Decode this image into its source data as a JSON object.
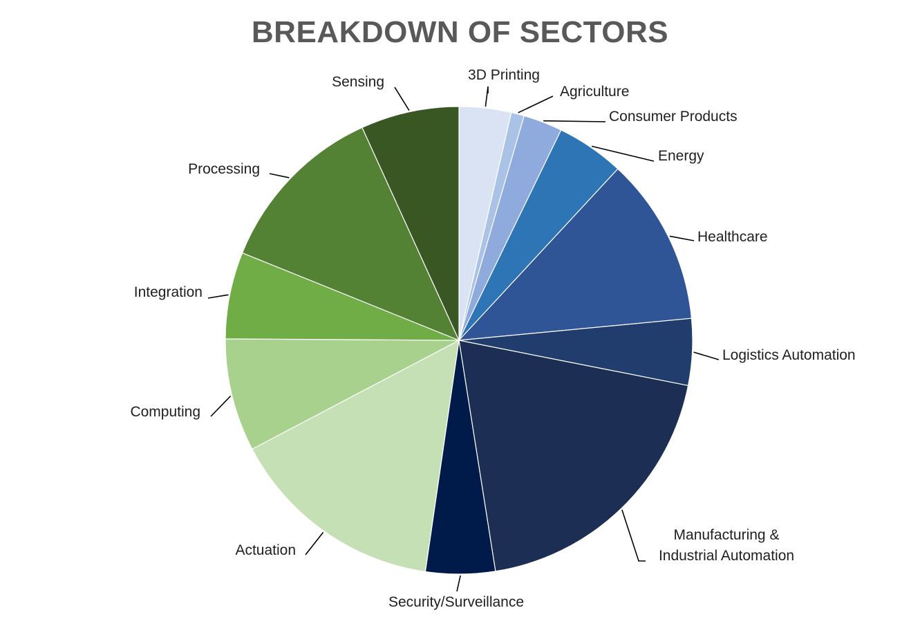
{
  "chart_data": {
    "type": "pie",
    "title": "BREAKDOWN OF SECTORS",
    "slices": [
      {
        "name": "3D Printing",
        "value": 3.6,
        "color": "#DAE3F3"
      },
      {
        "name": "Agriculture",
        "value": 0.9,
        "color": "#A9C2E6"
      },
      {
        "name": "Consumer Products",
        "value": 2.7,
        "color": "#8FAADC"
      },
      {
        "name": "Energy",
        "value": 4.7,
        "color": "#2E75B6"
      },
      {
        "name": "Healthcare",
        "value": 11.6,
        "color": "#2F5597"
      },
      {
        "name": "Logistics Automation",
        "value": 4.6,
        "color": "#203D6E"
      },
      {
        "name": "Manufacturing &\nIndustrial Automation",
        "value": 19.4,
        "color": "#1C2E54"
      },
      {
        "name": "Security/Surveillance",
        "value": 4.8,
        "color": "#001A4A"
      },
      {
        "name": "Actuation",
        "value": 15.0,
        "color": "#C5E0B4"
      },
      {
        "name": "Computing",
        "value": 7.8,
        "color": "#A9D18E"
      },
      {
        "name": "Integration",
        "value": 6.0,
        "color": "#70AD47"
      },
      {
        "name": "Processing",
        "value": 12.1,
        "color": "#548235"
      },
      {
        "name": "Sensing",
        "value": 6.8,
        "color": "#385723"
      }
    ],
    "legend": "none",
    "labels": "outside with leader lines"
  }
}
